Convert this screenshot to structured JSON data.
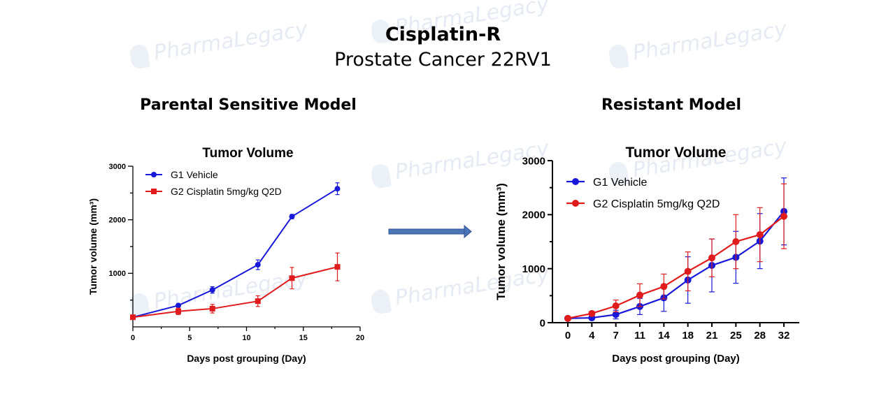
{
  "header": {
    "title": "Cisplatin-R",
    "subtitle": "Prostate Cancer 22RV1"
  },
  "panels": {
    "left_title": "Parental Sensitive Model",
    "right_title": "Resistant Model"
  },
  "watermark": {
    "brand": "PharmaLegacy"
  },
  "colors": {
    "vehicle": "#1818d8",
    "cisplatin": "#e01b1b",
    "arrow": "#4a76b8"
  },
  "chart_data": [
    {
      "type": "line",
      "title": "Tumor Volume",
      "xlabel": "Days post grouping (Day)",
      "ylabel": "Tumor volume (mm³)",
      "xlim": [
        0,
        20
      ],
      "ylim": [
        0,
        3000
      ],
      "xticks": [
        0,
        5,
        10,
        15,
        20
      ],
      "yticks": [
        1000,
        2000,
        3000
      ],
      "legend": "top-left",
      "series": [
        {
          "name": "G1 Vehicle",
          "marker": "circle",
          "x": [
            0,
            4,
            7,
            11,
            14,
            18
          ],
          "values": [
            180,
            400,
            690,
            1160,
            2060,
            2580
          ],
          "errors": [
            20,
            30,
            60,
            90,
            40,
            110
          ]
        },
        {
          "name": "G2 Cisplatin 5mg/kg Q2D",
          "marker": "square",
          "x": [
            0,
            4,
            7,
            11,
            14,
            18
          ],
          "values": [
            180,
            290,
            340,
            480,
            910,
            1120
          ],
          "errors": [
            20,
            60,
            80,
            100,
            200,
            260
          ]
        }
      ]
    },
    {
      "type": "line",
      "title": "Tumor Volume",
      "xlabel": "Days post grouping (Day)",
      "ylabel": "Tumor volume (mm³)",
      "categories": [
        "0",
        "4",
        "7",
        "11",
        "14",
        "18",
        "21",
        "25",
        "28",
        "32"
      ],
      "ylim": [
        0,
        3000
      ],
      "yticks": [
        0,
        1000,
        2000,
        3000
      ],
      "legend": "top-left",
      "series": [
        {
          "name": "G1 Vehicle",
          "marker": "circle",
          "values": [
            80,
            90,
            150,
            300,
            460,
            790,
            1060,
            1210,
            1510,
            2060
          ],
          "errors": [
            20,
            20,
            80,
            150,
            250,
            430,
            490,
            480,
            510,
            620
          ]
        },
        {
          "name": "G2 Cisplatin 5mg/kg Q2D",
          "marker": "circle",
          "values": [
            80,
            170,
            310,
            510,
            670,
            950,
            1200,
            1500,
            1630,
            1970
          ],
          "errors": [
            20,
            40,
            110,
            210,
            230,
            360,
            350,
            500,
            500,
            600
          ]
        }
      ]
    }
  ]
}
